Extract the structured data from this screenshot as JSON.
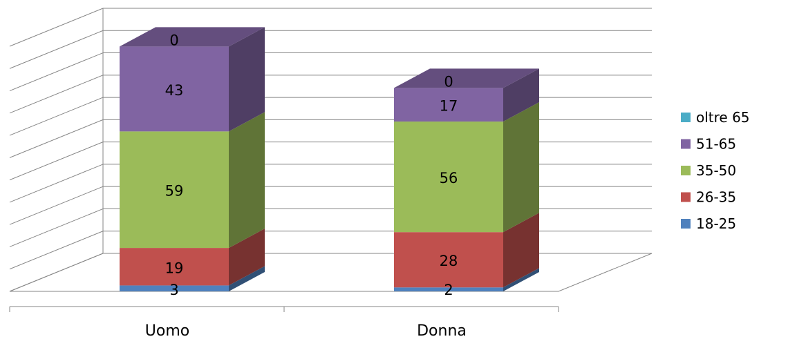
{
  "chart_data": {
    "type": "bar",
    "stacked": true,
    "three_d": true,
    "categories": [
      "Uomo",
      "Donna"
    ],
    "series": [
      {
        "name": "18-25",
        "values": [
          3,
          2
        ],
        "color": "#4F81BD"
      },
      {
        "name": "26-35",
        "values": [
          19,
          28
        ],
        "color": "#C0504D"
      },
      {
        "name": "35-50",
        "values": [
          59,
          56
        ],
        "color": "#9BBB59"
      },
      {
        "name": "51-65",
        "values": [
          43,
          17
        ],
        "color": "#8064A2"
      },
      {
        "name": "oltre 65",
        "values": [
          0,
          0
        ],
        "color": "#4BACC6"
      }
    ],
    "legend": {
      "position": "right",
      "order": [
        "oltre 65",
        "51-65",
        "35-50",
        "26-35",
        "18-25"
      ]
    },
    "grid": true,
    "ylim": [
      0,
      140
    ]
  }
}
